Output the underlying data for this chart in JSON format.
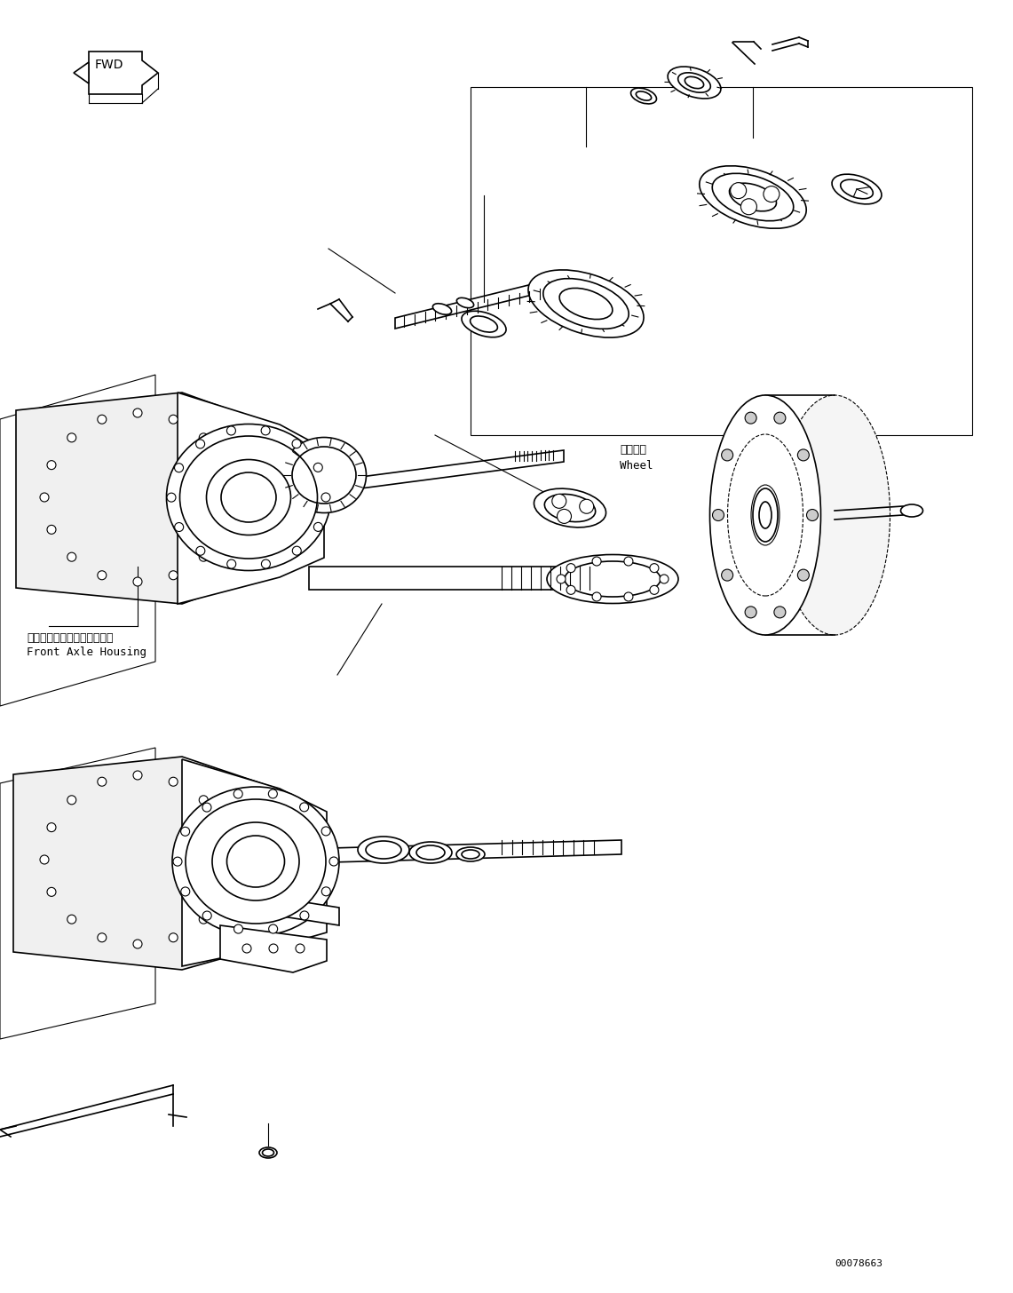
{
  "title": "",
  "background_color": "#ffffff",
  "line_color": "#000000",
  "label_front_axle_jp": "フロントアクスルハウジング",
  "label_front_axle_en": "Front Axle Housing",
  "label_wheel_jp": "ホイール",
  "label_wheel_en": "Wheel",
  "label_fwd": "FWD",
  "label_part_number": "00078663",
  "figsize": [
    11.41,
    14.56
  ],
  "dpi": 100
}
